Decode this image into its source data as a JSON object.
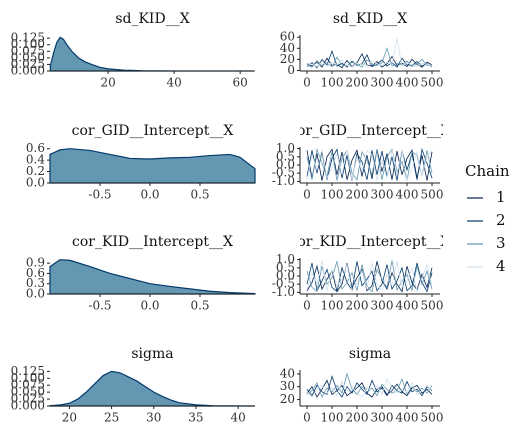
{
  "chart_data": [
    {
      "type": "density",
      "title": "sd_KID__X",
      "x": [
        2.5,
        3.5,
        4.5,
        5.5,
        6.5,
        7.5,
        9,
        11,
        13,
        15,
        17.5,
        20,
        25,
        30,
        40,
        50,
        64
      ],
      "values": [
        0.02,
        0.07,
        0.11,
        0.128,
        0.12,
        0.1,
        0.075,
        0.05,
        0.035,
        0.025,
        0.014,
        0.008,
        0.003,
        0.001,
        0.0003,
        0.0001,
        0
      ],
      "xlim": [
        2.4,
        64.5
      ],
      "ylim": [
        0,
        0.137
      ],
      "xticks": [
        20,
        40,
        60
      ],
      "yticks": [
        {
          "value": 0,
          "label": "0.000"
        },
        0.025,
        {
          "value": 0.05,
          "label": "0.050"
        },
        0.075,
        {
          "value": 0.1,
          "label": "0.100"
        },
        0.125
      ],
      "color": "#6497b1",
      "line_color": "#03396c"
    },
    {
      "type": "trace",
      "title": "sd_KID__X",
      "legend_title": "Chain",
      "x": [
        0,
        20,
        40,
        60,
        80,
        100,
        120,
        140,
        160,
        180,
        200,
        220,
        240,
        260,
        280,
        300,
        320,
        340,
        360,
        380,
        400,
        420,
        440,
        460,
        480,
        500
      ],
      "series": [
        {
          "name": "1",
          "color": "#011f4b",
          "values": [
            12,
            8,
            15,
            6,
            22,
            9,
            11,
            5,
            18,
            7,
            14,
            30,
            10,
            8,
            16,
            6,
            12,
            25,
            9,
            13,
            7,
            20,
            11,
            6,
            15,
            10
          ]
        },
        {
          "name": "2",
          "color": "#03396c",
          "values": [
            7,
            14,
            5,
            20,
            10,
            35,
            8,
            13,
            6,
            17,
            9,
            12,
            28,
            7,
            11,
            19,
            8,
            14,
            6,
            22,
            10,
            9,
            16,
            8,
            12,
            7
          ]
        },
        {
          "name": "3",
          "color": "#6497b1",
          "values": [
            10,
            6,
            18,
            9,
            13,
            7,
            24,
            10,
            8,
            15,
            11,
            6,
            19,
            12,
            9,
            14,
            40,
            8,
            13,
            10,
            17,
            7,
            12,
            20,
            9,
            11
          ]
        },
        {
          "name": "4",
          "color": "#d1e1ec",
          "values": [
            9,
            12,
            7,
            16,
            8,
            14,
            10,
            19,
            9,
            6,
            13,
            10,
            8,
            17,
            12,
            9,
            15,
            11,
            58,
            8,
            14,
            10,
            7,
            13,
            11,
            9
          ]
        }
      ],
      "xlim": [
        -28,
        532
      ],
      "ylim": [
        -1,
        64
      ],
      "xticks": [
        0,
        100,
        200,
        300,
        400,
        500
      ],
      "yticks": [
        0,
        20,
        40,
        60
      ]
    },
    {
      "type": "density",
      "title": "cor_GID__Intercept__X",
      "x": [
        -1,
        -0.9,
        -0.8,
        -0.6,
        -0.4,
        -0.2,
        0,
        0.2,
        0.4,
        0.6,
        0.8,
        0.9,
        1.05
      ],
      "values": [
        0.5,
        0.58,
        0.6,
        0.57,
        0.5,
        0.43,
        0.42,
        0.44,
        0.45,
        0.48,
        0.5,
        0.45,
        0.25
      ],
      "xlim": [
        -1,
        1.05
      ],
      "ylim": [
        0,
        0.63
      ],
      "xticks": [
        -0.5,
        {
          "value": 0,
          "label": "0.0"
        },
        0.5
      ],
      "yticks": [
        {
          "value": 0,
          "label": "0.0"
        },
        0.2,
        0.4,
        0.6
      ],
      "color": "#6497b1",
      "line_color": "#03396c"
    },
    {
      "type": "trace",
      "title": "cor_GID__Intercept__X",
      "x": [
        0,
        20,
        40,
        60,
        80,
        100,
        120,
        140,
        160,
        180,
        200,
        220,
        240,
        260,
        280,
        300,
        320,
        340,
        360,
        380,
        400,
        420,
        440,
        460,
        480,
        500
      ],
      "series": [
        {
          "name": "1",
          "color": "#011f4b",
          "values": [
            0.9,
            -0.8,
            0.7,
            -0.95,
            0.5,
            0.95,
            -0.6,
            0.8,
            -0.9,
            0.3,
            0.9,
            -0.7,
            0.6,
            -0.85,
            0.95,
            -0.4,
            0.7,
            -0.9,
            0.85,
            -0.6,
            0.4,
            0.9,
            -0.8,
            0.6,
            -0.95,
            0.8
          ]
        },
        {
          "name": "2",
          "color": "#03396c",
          "values": [
            -0.7,
            0.9,
            -0.5,
            0.8,
            -0.9,
            0.4,
            0.95,
            -0.8,
            0.6,
            -0.95,
            0.7,
            0.2,
            -0.9,
            0.9,
            -0.6,
            0.85,
            -0.7,
            0.5,
            -0.95,
            0.9,
            -0.3,
            0.7,
            -0.9,
            0.95,
            0.1,
            -0.8
          ]
        },
        {
          "name": "3",
          "color": "#6497b1",
          "values": [
            0.5,
            -0.9,
            0.95,
            0.1,
            -0.7,
            0.8,
            -0.95,
            0.4,
            0.9,
            -0.5,
            -0.9,
            0.8,
            0.3,
            -0.6,
            0.9,
            -0.9,
            0.5,
            0.95,
            -0.4,
            0.2,
            -0.95,
            0.8,
            0.6,
            -0.7,
            0.9,
            -0.5
          ]
        },
        {
          "name": "4",
          "color": "#d1e1ec",
          "values": [
            -0.9,
            0.6,
            -0.3,
            0.95,
            -0.8,
            -0.2,
            0.7,
            -0.6,
            0.95,
            -0.9,
            0.5,
            -0.4,
            0.9,
            0.6,
            -0.95,
            0.3,
            -0.8,
            0.9,
            -0.6,
            0.95,
            -0.9,
            -0.2,
            0.8,
            -0.7,
            0.5,
            0.9
          ]
        }
      ],
      "xlim": [
        -28,
        532
      ],
      "ylim": [
        -1.1,
        1.1
      ],
      "xticks": [
        0,
        100,
        200,
        300,
        400,
        500
      ],
      "yticks": [
        {
          "value": -1,
          "label": "-1.0"
        },
        -0.5,
        {
          "value": 0,
          "label": "0.0"
        },
        0.5,
        {
          "value": 1,
          "label": "1.0"
        }
      ]
    },
    {
      "type": "density",
      "title": "cor_KID__Intercept__X",
      "x": [
        -1,
        -0.9,
        -0.8,
        -0.6,
        -0.4,
        -0.2,
        0,
        0.2,
        0.4,
        0.6,
        0.8,
        1.05
      ],
      "values": [
        0.8,
        1.0,
        0.98,
        0.8,
        0.6,
        0.45,
        0.3,
        0.22,
        0.15,
        0.08,
        0.04,
        0.01
      ],
      "xlim": [
        -1,
        1.05
      ],
      "ylim": [
        0,
        1.05
      ],
      "xticks": [
        -0.5,
        {
          "value": 0,
          "label": "0.0"
        },
        0.5
      ],
      "yticks": [
        {
          "value": 0,
          "label": "0.0"
        },
        0.3,
        0.6,
        0.9
      ],
      "color": "#6497b1",
      "line_color": "#03396c"
    },
    {
      "type": "trace",
      "title": "cor_KID__Intercept__X",
      "x": [
        0,
        20,
        40,
        60,
        80,
        100,
        120,
        140,
        160,
        180,
        200,
        220,
        240,
        260,
        280,
        300,
        320,
        340,
        360,
        380,
        400,
        420,
        440,
        460,
        480,
        500
      ],
      "series": [
        {
          "name": "1",
          "color": "#011f4b",
          "values": [
            -0.9,
            -0.4,
            0.6,
            -0.8,
            -0.2,
            0.3,
            -0.95,
            -0.5,
            0.8,
            -0.7,
            -0.1,
            0.4,
            -0.9,
            -0.6,
            0.9,
            -0.3,
            -0.8,
            0.2,
            -0.5,
            -0.95,
            0.6,
            -0.4,
            -0.85,
            0.1,
            -0.7,
            0.5
          ]
        },
        {
          "name": "2",
          "color": "#03396c",
          "values": [
            -0.5,
            0.8,
            -0.9,
            -0.3,
            0.4,
            -0.7,
            -0.95,
            0.5,
            -0.4,
            -0.85,
            0.9,
            -0.6,
            -0.2,
            0.3,
            -0.9,
            -0.5,
            0.7,
            -0.8,
            -0.3,
            0.5,
            -0.9,
            -0.6,
            0.8,
            -0.4,
            -0.95,
            0.2
          ]
        },
        {
          "name": "3",
          "color": "#6497b1",
          "values": [
            0.3,
            -0.7,
            -0.95,
            0.6,
            -0.5,
            -0.1,
            0.9,
            -0.8,
            -0.4,
            0.2,
            -0.9,
            0.7,
            -0.6,
            -0.95,
            0.4,
            -0.2,
            -0.7,
            0.95,
            -0.85,
            -0.3,
            0.1,
            -0.9,
            0.6,
            -0.5,
            0.3,
            -0.8
          ]
        },
        {
          "name": "4",
          "color": "#d1e1ec",
          "values": [
            -0.8,
            0.2,
            -0.5,
            0.95,
            -0.9,
            0.4,
            -0.6,
            -0.2,
            0.7,
            -0.95,
            -0.4,
            0.3,
            -0.8,
            0.8,
            -0.5,
            -0.9,
            0.1,
            -0.6,
            0.9,
            -0.7,
            -0.3,
            0.5,
            -0.95,
            -0.1,
            0.7,
            -0.6
          ]
        }
      ],
      "xlim": [
        -28,
        532
      ],
      "ylim": [
        -1.1,
        1.1
      ],
      "xticks": [
        0,
        100,
        200,
        300,
        400,
        500
      ],
      "yticks": [
        {
          "value": -1,
          "label": "-1.0"
        },
        -0.5,
        {
          "value": 0,
          "label": "0.0"
        },
        0.5,
        {
          "value": 1,
          "label": "1.0"
        }
      ]
    },
    {
      "type": "density",
      "title": "sigma",
      "x": [
        17.7,
        19,
        20,
        21,
        22,
        23,
        24,
        25,
        26,
        27,
        28,
        29,
        30,
        31,
        32,
        33,
        35,
        37,
        39,
        42
      ],
      "values": [
        0.001,
        0.004,
        0.01,
        0.025,
        0.05,
        0.08,
        0.11,
        0.125,
        0.12,
        0.105,
        0.09,
        0.07,
        0.05,
        0.035,
        0.022,
        0.012,
        0.004,
        0.001,
        0.0004,
        0
      ],
      "xlim": [
        17.7,
        42
      ],
      "ylim": [
        0,
        0.13
      ],
      "xticks": [
        20,
        25,
        30,
        35,
        40
      ],
      "yticks": [
        {
          "value": 0,
          "label": "0.000"
        },
        0.025,
        {
          "value": 0.05,
          "label": "0.050"
        },
        0.075,
        {
          "value": 0.1,
          "label": "0.100"
        },
        0.125
      ],
      "color": "#6497b1",
      "line_color": "#03396c"
    },
    {
      "type": "trace",
      "title": "sigma",
      "x": [
        0,
        20,
        40,
        60,
        80,
        100,
        120,
        140,
        160,
        180,
        200,
        220,
        240,
        260,
        280,
        300,
        320,
        340,
        360,
        380,
        400,
        420,
        440,
        460,
        480,
        500
      ],
      "series": [
        {
          "name": "1",
          "color": "#011f4b",
          "values": [
            25,
            30,
            22,
            28,
            35,
            24,
            27,
            31,
            23,
            26,
            29,
            33,
            25,
            22,
            28,
            30,
            24,
            27,
            32,
            26,
            23,
            29,
            31,
            25,
            28,
            24
          ]
        },
        {
          "name": "2",
          "color": "#03396c",
          "values": [
            28,
            23,
            31,
            26,
            24,
            38,
            27,
            22,
            30,
            25,
            33,
            28,
            24,
            35,
            26,
            29,
            23,
            31,
            27,
            25,
            34,
            26,
            28,
            23,
            30,
            27
          ]
        },
        {
          "name": "3",
          "color": "#6497b1",
          "values": [
            24,
            27,
            33,
            22,
            29,
            26,
            31,
            25,
            40,
            28,
            24,
            30,
            26,
            29,
            23,
            32,
            28,
            25,
            27,
            36,
            24,
            30,
            26,
            29,
            25,
            31
          ]
        },
        {
          "name": "4",
          "color": "#d1e1ec",
          "values": [
            26,
            22,
            28,
            31,
            25,
            29,
            23,
            34,
            27,
            30,
            25,
            22,
            29,
            27,
            31,
            24,
            36,
            29,
            25,
            28,
            26,
            33,
            24,
            27,
            31,
            26
          ]
        }
      ],
      "xlim": [
        -28,
        532
      ],
      "ylim": [
        15,
        43
      ],
      "xticks": [
        0,
        100,
        200,
        300,
        400,
        500
      ],
      "yticks": [
        20,
        30,
        40
      ]
    }
  ]
}
